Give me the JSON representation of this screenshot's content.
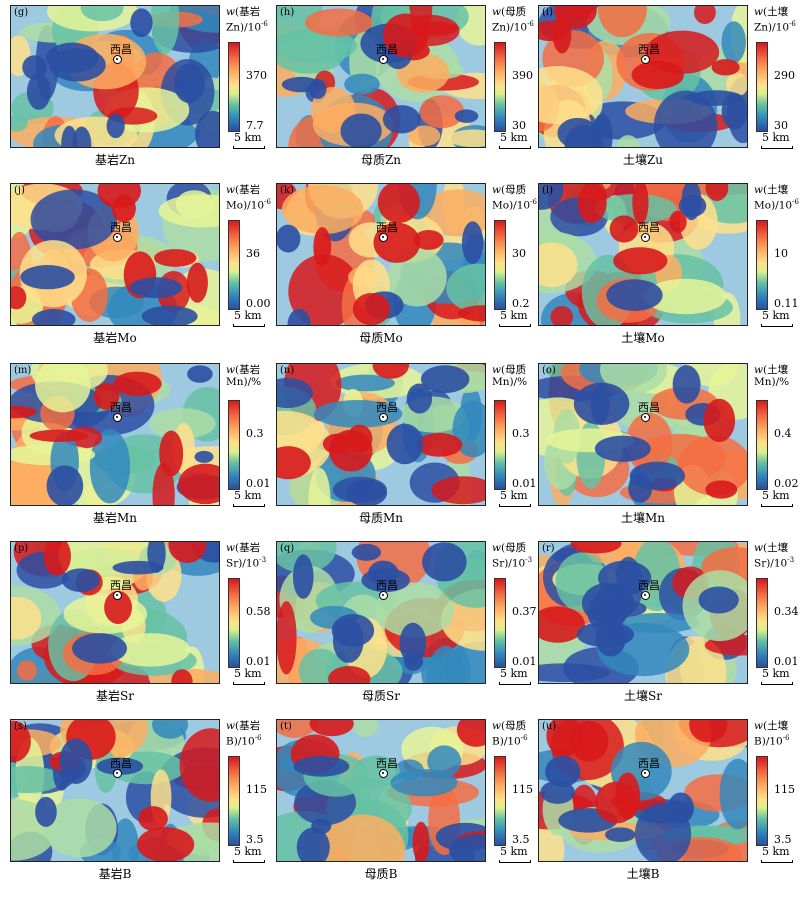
{
  "city_label": "西昌",
  "scale_label": "5 km",
  "colors": {
    "high": "#d7191c",
    "mid": "#fee08b",
    "low": "#2b4fa2"
  },
  "panels": [
    {
      "letter": "(g)",
      "legend_line1": "基岩",
      "legend_line2": "Zn)/10",
      "unit_exp": "-6",
      "mid": "370",
      "min": "7.7",
      "caption": "基岩Zn"
    },
    {
      "letter": "(h)",
      "legend_line1": "母质",
      "legend_line2": "Zn)/10",
      "unit_exp": "-6",
      "mid": "390",
      "min": "30",
      "caption": "母质Zn"
    },
    {
      "letter": "(i)",
      "legend_line1": "土壤",
      "legend_line2": "Zn)/10",
      "unit_exp": "-6",
      "mid": "290",
      "min": "30",
      "caption": "土壤Zu"
    },
    {
      "letter": "(j)",
      "legend_line1": "基岩",
      "legend_line2": "Mo)/10",
      "unit_exp": "-6",
      "mid": "36",
      "min": "0.00",
      "caption": "基岩Mo"
    },
    {
      "letter": "(k)",
      "legend_line1": "母质",
      "legend_line2": "Mo)/10",
      "unit_exp": "-6",
      "mid": "30",
      "min": "0.2",
      "caption": "母质Mo"
    },
    {
      "letter": "(l)",
      "legend_line1": "土壤",
      "legend_line2": "Mo)/10",
      "unit_exp": "-6",
      "mid": "10",
      "min": "0.11",
      "caption": "土壤Mo"
    },
    {
      "letter": "(m)",
      "legend_line1": "基岩",
      "legend_line2": "Mn)/%",
      "unit_exp": "",
      "mid": "0.3",
      "min": "0.01",
      "caption": "基岩Mn"
    },
    {
      "letter": "(n)",
      "legend_line1": "母质",
      "legend_line2": "Mn)/%",
      "unit_exp": "",
      "mid": "0.3",
      "min": "0.01",
      "caption": "母质Mn"
    },
    {
      "letter": "(o)",
      "legend_line1": "土壤",
      "legend_line2": "Mn)/%",
      "unit_exp": "",
      "mid": "0.4",
      "min": "0.02",
      "caption": "土壤Mn"
    },
    {
      "letter": "(p)",
      "legend_line1": "基岩",
      "legend_line2": "Sr)/10",
      "unit_exp": "-3",
      "mid": "0.58",
      "min": "0.01",
      "caption": "基岩Sr"
    },
    {
      "letter": "(q)",
      "legend_line1": "母质",
      "legend_line2": "Sr)/10",
      "unit_exp": "-3",
      "mid": "0.37",
      "min": "0.01",
      "caption": "母质Sr"
    },
    {
      "letter": "(r)",
      "legend_line1": "土壤",
      "legend_line2": "Sr)/10",
      "unit_exp": "-3",
      "mid": "0.34",
      "min": "0.01",
      "caption": "土壤Sr"
    },
    {
      "letter": "(s)",
      "legend_line1": "基岩",
      "legend_line2": "B)/10",
      "unit_exp": "-6",
      "mid": "115",
      "min": "3.5",
      "caption": "基岩B"
    },
    {
      "letter": "(t)",
      "legend_line1": "母质",
      "legend_line2": "B)/10",
      "unit_exp": "-6",
      "mid": "115",
      "min": "3.5",
      "caption": "母质B"
    },
    {
      "letter": "(u)",
      "legend_line1": "土壤",
      "legend_line2": "B)/10",
      "unit_exp": "-6",
      "mid": "115",
      "min": "3.5",
      "caption": "土壤B"
    }
  ]
}
